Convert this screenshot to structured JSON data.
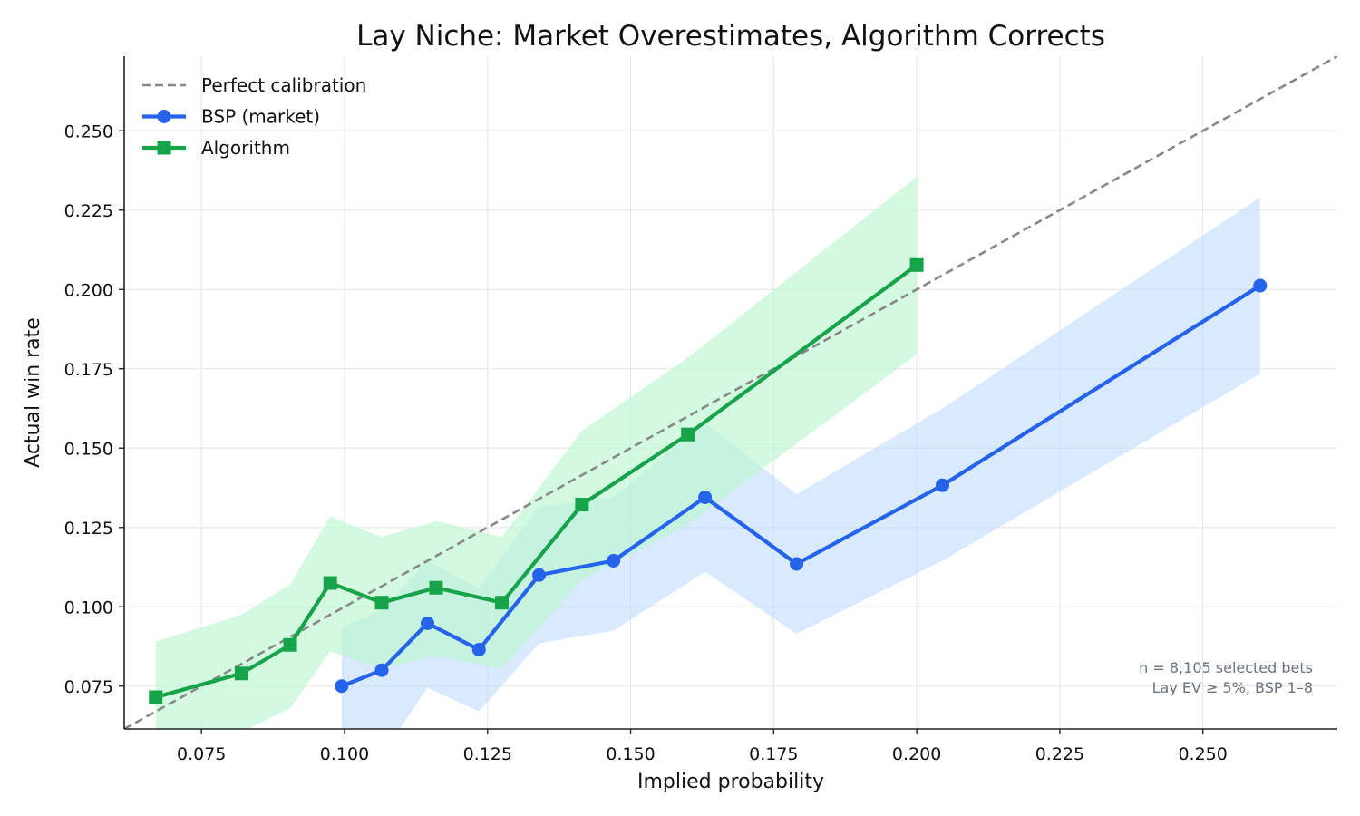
{
  "chart_data": {
    "type": "line",
    "title": "Lay Niche: Market Overestimates, Algorithm Corrects",
    "xlabel": "Implied probability",
    "ylabel": "Actual win rate",
    "xlim": [
      0.0615,
      0.2735
    ],
    "ylim": [
      0.0615,
      0.2735
    ],
    "xticks": [
      0.075,
      0.1,
      0.125,
      0.15,
      0.175,
      0.2,
      0.225,
      0.25
    ],
    "yticks": [
      0.075,
      0.1,
      0.125,
      0.15,
      0.175,
      0.2,
      0.225,
      0.25
    ],
    "xtick_labels": [
      "0.075",
      "0.100",
      "0.125",
      "0.150",
      "0.175",
      "0.200",
      "0.225",
      "0.250"
    ],
    "ytick_labels": [
      "0.075",
      "0.100",
      "0.125",
      "0.150",
      "0.175",
      "0.200",
      "0.225",
      "0.250"
    ],
    "grid": true,
    "legend_position": "top-left",
    "reference_line": {
      "name": "Perfect calibration",
      "color": "#888888",
      "style": "dashed"
    },
    "series": [
      {
        "name": "BSP (market)",
        "color": "#2563eb",
        "band_color": "#bfdbfe",
        "marker": "circle",
        "x": [
          0.0995,
          0.1065,
          0.1145,
          0.1235,
          0.134,
          0.147,
          0.163,
          0.179,
          0.2045,
          0.26
        ],
        "y": [
          0.075,
          0.08,
          0.0948,
          0.0865,
          0.11,
          0.1145,
          0.1345,
          0.1135,
          0.1383,
          0.2012
        ],
        "lower": [
          0.045,
          0.053,
          0.0745,
          0.067,
          0.0885,
          0.0925,
          0.111,
          0.0915,
          0.1145,
          0.1735
        ],
        "upper": [
          0.0935,
          0.099,
          0.1145,
          0.106,
          0.1315,
          0.1345,
          0.158,
          0.1355,
          0.1625,
          0.229
        ]
      },
      {
        "name": "Algorithm",
        "color": "#16a34a",
        "band_color": "#bbf7d0",
        "marker": "square",
        "x": [
          0.067,
          0.082,
          0.0905,
          0.0975,
          0.1065,
          0.116,
          0.1275,
          0.1415,
          0.16,
          0.2
        ],
        "y": [
          0.0715,
          0.079,
          0.088,
          0.1075,
          0.1013,
          0.106,
          0.1013,
          0.1322,
          0.1543,
          0.2077
        ],
        "lower": [
          0.053,
          0.0605,
          0.068,
          0.086,
          0.0805,
          0.0845,
          0.0805,
          0.1085,
          0.126,
          0.1795
        ],
        "upper": [
          0.089,
          0.0975,
          0.107,
          0.1285,
          0.122,
          0.127,
          0.122,
          0.1555,
          0.1785,
          0.2355
        ]
      }
    ],
    "annotation": [
      "n = 8,105 selected bets",
      "Lay EV ≥ 5%, BSP 1–8"
    ]
  }
}
